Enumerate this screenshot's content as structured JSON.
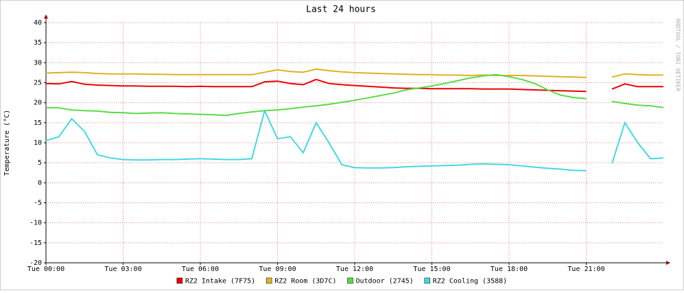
{
  "chart_data": {
    "type": "line",
    "title": "Last 24 hours",
    "ylabel": "Temperature (°C)",
    "watermark": "RRDTOOL / TOBI OETIKER",
    "x": [
      0,
      0.5,
      1,
      1.5,
      2,
      2.5,
      3,
      3.5,
      4,
      4.5,
      5,
      5.5,
      6,
      6.5,
      7,
      7.5,
      8,
      8.5,
      9,
      9.5,
      10,
      10.5,
      11,
      11.5,
      12,
      12.5,
      13,
      13.5,
      14,
      14.5,
      15,
      15.5,
      16,
      16.5,
      17,
      17.5,
      18,
      18.5,
      19,
      19.5,
      20,
      20.5,
      21,
      21.5,
      22,
      22.5,
      23,
      23.5,
      24
    ],
    "xlim": [
      0,
      24
    ],
    "xticks": [
      {
        "value": 0,
        "label": "Tue 00:00"
      },
      {
        "value": 3,
        "label": "Tue 03:00"
      },
      {
        "value": 6,
        "label": "Tue 06:00"
      },
      {
        "value": 9,
        "label": "Tue 09:00"
      },
      {
        "value": 12,
        "label": "Tue 12:00"
      },
      {
        "value": 15,
        "label": "Tue 15:00"
      },
      {
        "value": 18,
        "label": "Tue 18:00"
      },
      {
        "value": 21,
        "label": "Tue 21:00"
      }
    ],
    "ylim": [
      -20,
      40
    ],
    "yticks": [
      -20,
      -15,
      -10,
      -5,
      0,
      5,
      10,
      15,
      20,
      25,
      30,
      35,
      40
    ],
    "grid": true,
    "legend": "bottom",
    "series": [
      {
        "name": "RZ2 Intake (7F75)",
        "color": "#ee0000",
        "values": [
          24.8,
          24.7,
          25.3,
          24.6,
          24.4,
          24.3,
          24.2,
          24.2,
          24.1,
          24.1,
          24.1,
          24.0,
          24.1,
          24.0,
          24.0,
          24.0,
          24.0,
          25.2,
          25.4,
          24.8,
          24.5,
          25.8,
          24.8,
          24.5,
          24.3,
          24.1,
          23.9,
          23.7,
          23.6,
          23.6,
          23.5,
          23.5,
          23.5,
          23.5,
          23.4,
          23.4,
          23.4,
          23.3,
          23.2,
          23.1,
          23.0,
          22.9,
          22.8,
          null,
          23.4,
          24.7,
          24.0,
          24.0,
          24.0
        ]
      },
      {
        "name": "RZ2 Room (3D7C)",
        "color": "#e0b020",
        "values": [
          27.4,
          27.5,
          27.6,
          27.5,
          27.3,
          27.2,
          27.2,
          27.2,
          27.1,
          27.1,
          27.0,
          27.0,
          27.0,
          27.0,
          27.0,
          27.0,
          27.0,
          27.6,
          28.2,
          27.8,
          27.6,
          28.4,
          28.0,
          27.7,
          27.5,
          27.4,
          27.3,
          27.2,
          27.1,
          27.0,
          27.0,
          26.9,
          26.9,
          26.8,
          26.9,
          26.8,
          26.8,
          26.8,
          26.7,
          26.6,
          26.5,
          26.4,
          26.3,
          null,
          26.4,
          27.2,
          27.0,
          26.9,
          26.9
        ]
      },
      {
        "name": "Outdoor (2745)",
        "color": "#55dd44",
        "values": [
          18.8,
          18.7,
          18.2,
          18.0,
          17.9,
          17.6,
          17.5,
          17.3,
          17.4,
          17.5,
          17.3,
          17.2,
          17.1,
          17.0,
          16.8,
          17.3,
          17.7,
          18.0,
          18.2,
          18.5,
          18.9,
          19.2,
          19.6,
          20.1,
          20.6,
          21.2,
          21.8,
          22.4,
          23.2,
          23.7,
          24.2,
          24.8,
          25.5,
          26.2,
          26.7,
          27.0,
          26.5,
          25.8,
          24.8,
          23.2,
          21.9,
          21.3,
          21.0,
          null,
          20.3,
          19.8,
          19.4,
          19.2,
          18.8
        ]
      },
      {
        "name": "RZ2 Cooling (3588)",
        "color": "#44d8e0",
        "values": [
          10.5,
          11.5,
          16.0,
          12.8,
          7.0,
          6.2,
          5.8,
          5.7,
          5.7,
          5.8,
          5.8,
          5.9,
          6.0,
          5.9,
          5.8,
          5.8,
          6.0,
          18.0,
          11.0,
          11.5,
          7.5,
          15.0,
          10.0,
          4.5,
          3.8,
          3.7,
          3.7,
          3.8,
          4.0,
          4.1,
          4.2,
          4.3,
          4.4,
          4.6,
          4.7,
          4.6,
          4.5,
          4.2,
          3.9,
          3.6,
          3.4,
          3.1,
          3.0,
          null,
          4.8,
          15.0,
          10.0,
          6.0,
          6.2
        ]
      }
    ]
  }
}
